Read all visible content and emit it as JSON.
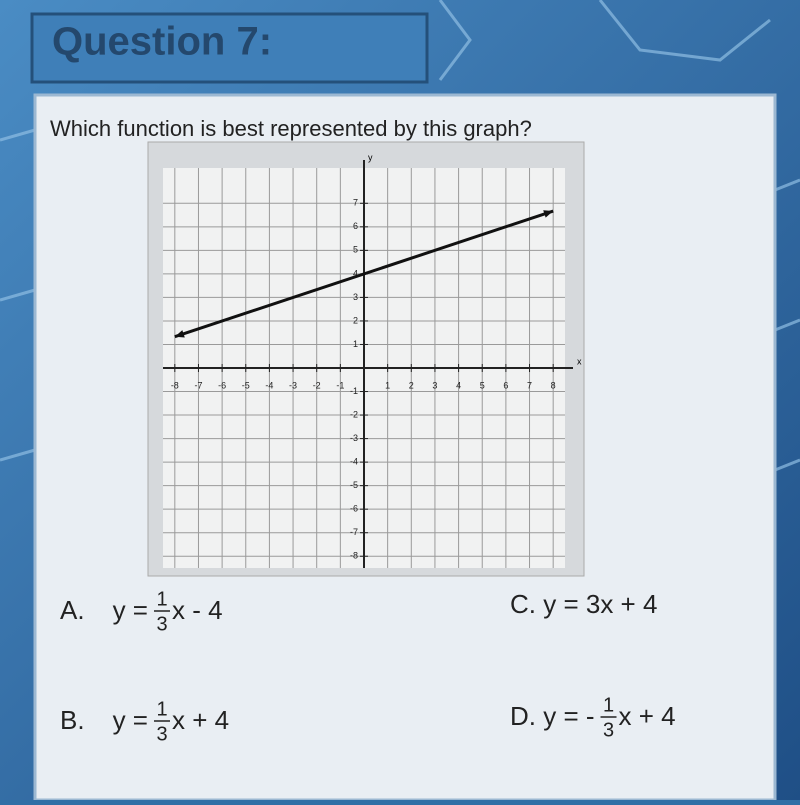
{
  "header": {
    "title": "Question 7:"
  },
  "question": "Which function is best represented by this graph?",
  "graph": {
    "xlim": [
      -8.5,
      8.5
    ],
    "ylim": [
      -8.5,
      8.5
    ],
    "xticks": [
      -8,
      -7,
      -6,
      -5,
      -4,
      -3,
      -2,
      -1,
      1,
      2,
      3,
      4,
      5,
      6,
      7,
      8
    ],
    "yticks": [
      -8,
      -7,
      -6,
      -5,
      -4,
      -3,
      -2,
      -1,
      1,
      2,
      3,
      4,
      5,
      6,
      7
    ],
    "x_axis_label": "x",
    "y_axis_label": "y",
    "line": {
      "x": [
        -8,
        8
      ],
      "y": [
        1.33,
        6.67
      ]
    }
  },
  "options": [
    {
      "label": "A.",
      "prefix": "y =",
      "numerator": "1",
      "denominator": "3",
      "suffix": "x - 4"
    },
    {
      "label": "C. y = 3x + 4"
    },
    {
      "label": "B.",
      "prefix": "y =",
      "numerator": "1",
      "denominator": "3",
      "suffix": "x + 4"
    },
    {
      "label": "D. y = -",
      "numerator": "1",
      "denominator": "3",
      "suffix": "x + 4"
    }
  ]
}
